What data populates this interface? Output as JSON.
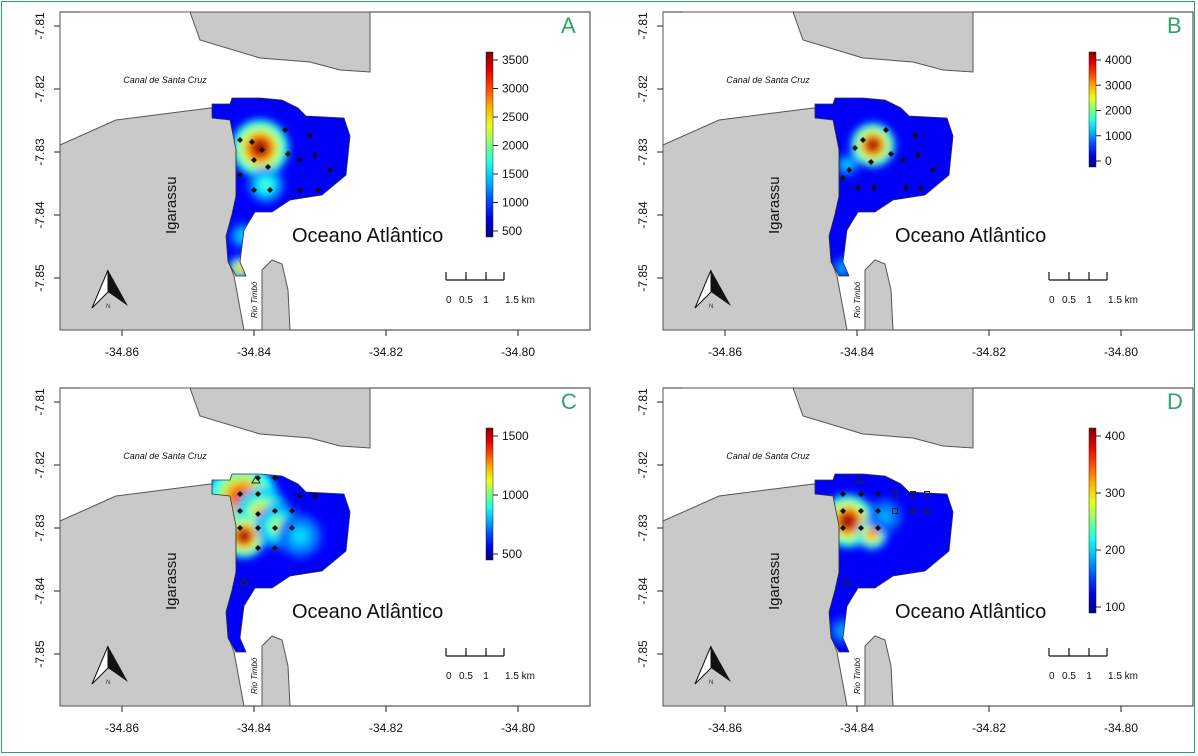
{
  "panels": [
    {
      "letter": "A",
      "scale_max_label": "3500",
      "colorbar_ticks": [
        "3500",
        "3000",
        "2500",
        "2000",
        "1500",
        "1000",
        "500"
      ]
    },
    {
      "letter": "B",
      "scale_max_label": "4000",
      "colorbar_ticks": [
        "4000",
        "3000",
        "2000",
        "1000",
        "0"
      ]
    },
    {
      "letter": "C",
      "scale_max_label": "1500",
      "colorbar_ticks": [
        "1500",
        "1000",
        "500"
      ]
    },
    {
      "letter": "D",
      "scale_max_label": "400",
      "colorbar_ticks": [
        "400",
        "300",
        "200",
        "100"
      ]
    }
  ],
  "labels": {
    "canal": "Canal de Santa Cruz",
    "town": "Igarassu",
    "ocean": "Oceano Atlântico",
    "river": "Rio Timbó",
    "north": "N"
  },
  "y_ticks": [
    "-7.81",
    "-7.82",
    "-7.83",
    "-7.84",
    "-7.85"
  ],
  "x_ticks": [
    "-34.86",
    "-34.84",
    "-34.82",
    "-34.80"
  ],
  "scale_bar": {
    "ticks": [
      "0",
      "0.5",
      "1",
      "1.5 km"
    ]
  },
  "colors": {
    "accent": "#2aa56a",
    "land": "#c8c8c8",
    "sea": "#ffffff"
  }
}
